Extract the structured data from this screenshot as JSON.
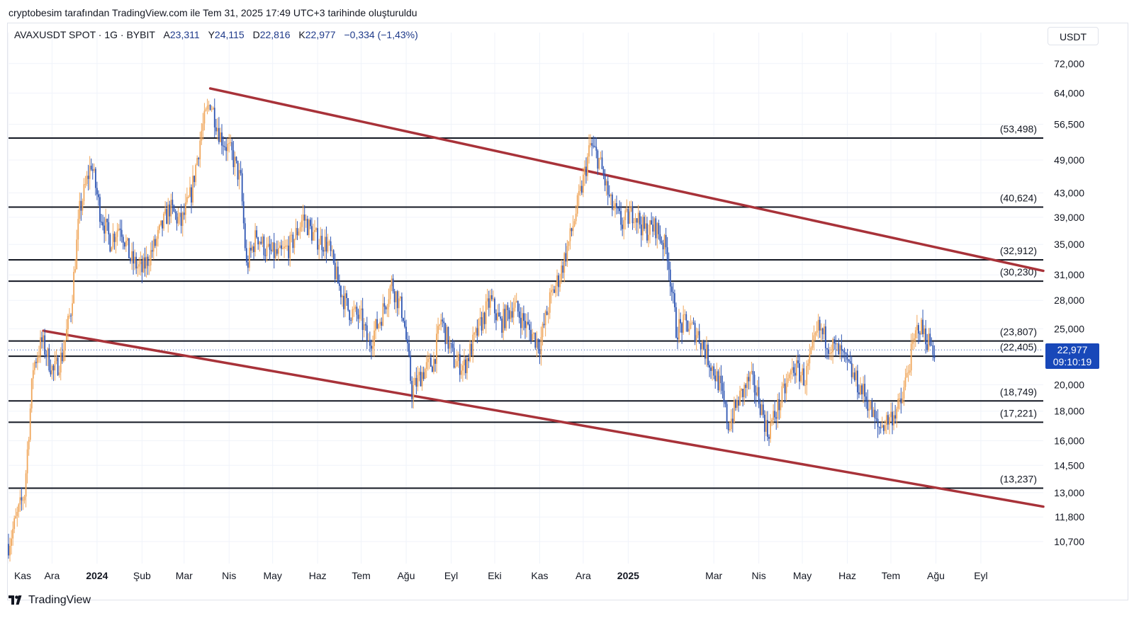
{
  "credit": "cryptobesim tarafından TradingView.com ile Tem 31, 2025 17:49 UTC+3 tarihinde oluşturuldu",
  "legend": {
    "symbol": "AVAXUSDT SPOT · 1G · BYBIT",
    "open_label": "A",
    "open": "23,311",
    "high_label": "Y",
    "high": "24,115",
    "low_label": "D",
    "low": "22,816",
    "close_label": "K",
    "close": "22,977",
    "change": "−0,334 (−1,43%)"
  },
  "unit_button": "USDT",
  "price_tag": {
    "price": "22,977",
    "countdown": "09:10:19"
  },
  "brand": "TradingView",
  "colors": {
    "up": "#f0a75c",
    "down": "#2f56b3",
    "trend": "#a83239",
    "level": "#131722",
    "price_tag": "#1848b9"
  },
  "chart_data": {
    "type": "candlestick",
    "title": "AVAXUSDT SPOT · 1G · BYBIT",
    "scale": "log",
    "ylim": [
      9.8,
      77
    ],
    "x_range": [
      "2023-11-01",
      "2025-10-14"
    ],
    "y_ticks": [
      {
        "value": 72,
        "label": "72,000"
      },
      {
        "value": 64,
        "label": "64,000"
      },
      {
        "value": 56.5,
        "label": "56,500"
      },
      {
        "value": 49,
        "label": "49,000"
      },
      {
        "value": 43,
        "label": "43,000"
      },
      {
        "value": 39,
        "label": "39,000"
      },
      {
        "value": 35,
        "label": "35,000"
      },
      {
        "value": 31,
        "label": "31,000"
      },
      {
        "value": 28,
        "label": "28,000"
      },
      {
        "value": 25,
        "label": "25,000"
      },
      {
        "value": 20,
        "label": "20,000"
      },
      {
        "value": 18,
        "label": "18,000"
      },
      {
        "value": 16,
        "label": "16,000"
      },
      {
        "value": 14.5,
        "label": "14,500"
      },
      {
        "value": 13,
        "label": "13,000"
      },
      {
        "value": 11.8,
        "label": "11,800"
      },
      {
        "value": 10.7,
        "label": "10,700"
      }
    ],
    "x_ticks": [
      {
        "date": "2023-11-01",
        "label": "Kas",
        "bold": false
      },
      {
        "date": "2023-12-01",
        "label": "Ara",
        "bold": false
      },
      {
        "date": "2024-01-01",
        "label": "2024",
        "bold": true
      },
      {
        "date": "2024-02-01",
        "label": "Şub",
        "bold": false
      },
      {
        "date": "2024-03-01",
        "label": "Mar",
        "bold": false
      },
      {
        "date": "2024-04-01",
        "label": "Nis",
        "bold": false
      },
      {
        "date": "2024-05-01",
        "label": "May",
        "bold": false
      },
      {
        "date": "2024-06-01",
        "label": "Haz",
        "bold": false
      },
      {
        "date": "2024-07-01",
        "label": "Tem",
        "bold": false
      },
      {
        "date": "2024-08-01",
        "label": "Ağu",
        "bold": false
      },
      {
        "date": "2024-09-01",
        "label": "Eyl",
        "bold": false
      },
      {
        "date": "2024-10-01",
        "label": "Eki",
        "bold": false
      },
      {
        "date": "2024-11-01",
        "label": "Kas",
        "bold": false
      },
      {
        "date": "2024-12-01",
        "label": "Ara",
        "bold": false
      },
      {
        "date": "2025-01-01",
        "label": "2025",
        "bold": true
      },
      {
        "date": "2025-03-01",
        "label": "Mar",
        "bold": false
      },
      {
        "date": "2025-04-01",
        "label": "Nis",
        "bold": false
      },
      {
        "date": "2025-05-01",
        "label": "May",
        "bold": false
      },
      {
        "date": "2025-06-01",
        "label": "Haz",
        "bold": false
      },
      {
        "date": "2025-07-01",
        "label": "Tem",
        "bold": false
      },
      {
        "date": "2025-08-01",
        "label": "Ağu",
        "bold": false
      },
      {
        "date": "2025-09-01",
        "label": "Eyl",
        "bold": false
      }
    ],
    "levels": [
      {
        "value": 53.498,
        "label": "(53,498)"
      },
      {
        "value": 40.624,
        "label": "(40,624)"
      },
      {
        "value": 32.912,
        "label": "(32,912)"
      },
      {
        "value": 30.23,
        "label": "(30,230)"
      },
      {
        "value": 23.807,
        "label": "(23,807)"
      },
      {
        "value": 22.405,
        "label": "(22,405)"
      },
      {
        "value": 18.749,
        "label": "(18,749)"
      },
      {
        "value": 17.221,
        "label": "(17,221)"
      },
      {
        "value": 13.237,
        "label": "(13,237)"
      }
    ],
    "current_price": 22.977,
    "trendlines": [
      {
        "name": "upper",
        "start": {
          "date": "2024-03-19",
          "value": 65.2
        },
        "end": {
          "date": "2025-10-14",
          "value": 31.5
        }
      },
      {
        "name": "lower",
        "start": {
          "date": "2023-11-25",
          "value": 24.8
        },
        "end": {
          "date": "2025-10-14",
          "value": 12.3
        }
      }
    ],
    "price_path": [
      {
        "date": "2023-11-01",
        "close": 10.6
      },
      {
        "date": "2023-11-12",
        "close": 13.0
      },
      {
        "date": "2023-11-18",
        "close": 21.5
      },
      {
        "date": "2023-11-24",
        "close": 23.8
      },
      {
        "date": "2023-12-02",
        "close": 21.0
      },
      {
        "date": "2023-12-08",
        "close": 22.5
      },
      {
        "date": "2023-12-14",
        "close": 27.0
      },
      {
        "date": "2023-12-20",
        "close": 40.0
      },
      {
        "date": "2023-12-28",
        "close": 48.5
      },
      {
        "date": "2024-01-03",
        "close": 40.0
      },
      {
        "date": "2024-01-10",
        "close": 35.5
      },
      {
        "date": "2024-01-17",
        "close": 38.0
      },
      {
        "date": "2024-01-24",
        "close": 33.0
      },
      {
        "date": "2024-02-01",
        "close": 31.5
      },
      {
        "date": "2024-02-10",
        "close": 35.0
      },
      {
        "date": "2024-02-20",
        "close": 40.5
      },
      {
        "date": "2024-02-28",
        "close": 38.0
      },
      {
        "date": "2024-03-06",
        "close": 43.0
      },
      {
        "date": "2024-03-13",
        "close": 55.0
      },
      {
        "date": "2024-03-19",
        "close": 62.0
      },
      {
        "date": "2024-03-26",
        "close": 54.0
      },
      {
        "date": "2024-04-03",
        "close": 50.0
      },
      {
        "date": "2024-04-09",
        "close": 45.0
      },
      {
        "date": "2024-04-13",
        "close": 32.0
      },
      {
        "date": "2024-04-20",
        "close": 36.5
      },
      {
        "date": "2024-04-27",
        "close": 34.0
      },
      {
        "date": "2024-05-06",
        "close": 33.5
      },
      {
        "date": "2024-05-14",
        "close": 35.0
      },
      {
        "date": "2024-05-22",
        "close": 39.0
      },
      {
        "date": "2024-05-30",
        "close": 36.0
      },
      {
        "date": "2024-06-08",
        "close": 35.0
      },
      {
        "date": "2024-06-15",
        "close": 30.0
      },
      {
        "date": "2024-06-22",
        "close": 27.0
      },
      {
        "date": "2024-07-01",
        "close": 26.0
      },
      {
        "date": "2024-07-06",
        "close": 23.5
      },
      {
        "date": "2024-07-14",
        "close": 26.0
      },
      {
        "date": "2024-07-22",
        "close": 30.0
      },
      {
        "date": "2024-07-30",
        "close": 26.5
      },
      {
        "date": "2024-08-05",
        "close": 19.5
      },
      {
        "date": "2024-08-12",
        "close": 21.0
      },
      {
        "date": "2024-08-20",
        "close": 22.0
      },
      {
        "date": "2024-08-25",
        "close": 26.0
      },
      {
        "date": "2024-09-03",
        "close": 22.0
      },
      {
        "date": "2024-09-10",
        "close": 21.5
      },
      {
        "date": "2024-09-20",
        "close": 25.0
      },
      {
        "date": "2024-09-28",
        "close": 28.0
      },
      {
        "date": "2024-10-05",
        "close": 25.5
      },
      {
        "date": "2024-10-14",
        "close": 27.5
      },
      {
        "date": "2024-10-24",
        "close": 25.0
      },
      {
        "date": "2024-11-01",
        "close": 23.5
      },
      {
        "date": "2024-11-08",
        "close": 28.0
      },
      {
        "date": "2024-11-15",
        "close": 31.0
      },
      {
        "date": "2024-11-22",
        "close": 36.0
      },
      {
        "date": "2024-11-30",
        "close": 44.0
      },
      {
        "date": "2024-12-06",
        "close": 52.0
      },
      {
        "date": "2024-12-12",
        "close": 49.0
      },
      {
        "date": "2024-12-20",
        "close": 41.0
      },
      {
        "date": "2024-12-28",
        "close": 38.0
      },
      {
        "date": "2025-01-05",
        "close": 40.0
      },
      {
        "date": "2025-01-12",
        "close": 37.0
      },
      {
        "date": "2025-01-20",
        "close": 37.5
      },
      {
        "date": "2025-01-28",
        "close": 34.0
      },
      {
        "date": "2025-02-03",
        "close": 25.0
      },
      {
        "date": "2025-02-10",
        "close": 25.5
      },
      {
        "date": "2025-02-18",
        "close": 24.5
      },
      {
        "date": "2025-02-26",
        "close": 22.0
      },
      {
        "date": "2025-03-05",
        "close": 20.0
      },
      {
        "date": "2025-03-11",
        "close": 17.0
      },
      {
        "date": "2025-03-18",
        "close": 18.8
      },
      {
        "date": "2025-03-26",
        "close": 20.5
      },
      {
        "date": "2025-04-01",
        "close": 19.0
      },
      {
        "date": "2025-04-07",
        "close": 16.5
      },
      {
        "date": "2025-04-15",
        "close": 18.5
      },
      {
        "date": "2025-04-25",
        "close": 21.5
      },
      {
        "date": "2025-05-03",
        "close": 20.5
      },
      {
        "date": "2025-05-12",
        "close": 25.0
      },
      {
        "date": "2025-05-20",
        "close": 23.5
      },
      {
        "date": "2025-05-28",
        "close": 22.5
      },
      {
        "date": "2025-06-06",
        "close": 20.5
      },
      {
        "date": "2025-06-14",
        "close": 19.0
      },
      {
        "date": "2025-06-22",
        "close": 16.8
      },
      {
        "date": "2025-06-30",
        "close": 17.5
      },
      {
        "date": "2025-07-08",
        "close": 18.5
      },
      {
        "date": "2025-07-14",
        "close": 22.0
      },
      {
        "date": "2025-07-20",
        "close": 25.5
      },
      {
        "date": "2025-07-26",
        "close": 24.0
      },
      {
        "date": "2025-07-31",
        "close": 22.98
      }
    ]
  }
}
